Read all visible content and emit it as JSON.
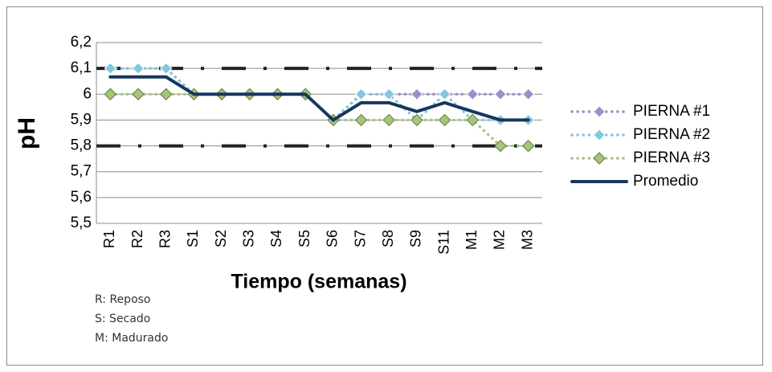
{
  "chart_data": {
    "type": "line",
    "y_label": "pH",
    "x_label": "Tiempo (semanas)",
    "categories": [
      "R1",
      "R2",
      "R3",
      "S1",
      "S2",
      "S3",
      "S4",
      "S5",
      "S6",
      "S7",
      "S8",
      "S9",
      "S11",
      "M1",
      "M2",
      "M3"
    ],
    "series": [
      {
        "name": "PIERNA #1",
        "color": "#a08cc8",
        "marker": "diamond",
        "values": [
          6.1,
          6.1,
          6.1,
          6.0,
          6.0,
          6.0,
          6.0,
          6.0,
          5.9,
          6.0,
          6.0,
          6.0,
          6.0,
          6.0,
          6.0,
          6.0
        ]
      },
      {
        "name": "PIERNA #2",
        "color": "#80c8de",
        "marker": "diamond",
        "values": [
          6.1,
          6.1,
          6.1,
          6.0,
          6.0,
          6.0,
          6.0,
          6.0,
          5.9,
          6.0,
          6.0,
          5.9,
          6.0,
          5.9,
          5.9,
          5.9
        ]
      },
      {
        "name": "PIERNA #3",
        "color": "#a6c57a",
        "marker": "diamond",
        "values": [
          6.0,
          6.0,
          6.0,
          6.0,
          6.0,
          6.0,
          6.0,
          6.0,
          5.9,
          5.9,
          5.9,
          5.9,
          5.9,
          5.9,
          5.8,
          5.8
        ]
      },
      {
        "name": "Promedio",
        "color": "#17375e",
        "marker": "none",
        "values": [
          6.067,
          6.067,
          6.067,
          6.0,
          6.0,
          6.0,
          6.0,
          6.0,
          5.9,
          5.967,
          5.967,
          5.933,
          5.967,
          5.933,
          5.9,
          5.9
        ]
      }
    ],
    "reference_lines": [
      6.1,
      5.8
    ],
    "ylim": [
      5.5,
      6.2
    ],
    "yticks": [
      {
        "value": 5.5,
        "label": "5,5"
      },
      {
        "value": 5.6,
        "label": "5,6"
      },
      {
        "value": 5.7,
        "label": "5,7"
      },
      {
        "value": 5.8,
        "label": "5,8"
      },
      {
        "value": 5.9,
        "label": "5,9"
      },
      {
        "value": 6,
        "label": "6"
      },
      {
        "value": 6.1,
        "label": "6,1"
      },
      {
        "value": 6.2,
        "label": "6,2"
      }
    ],
    "grid": true,
    "legend": "right",
    "notes": [
      "R: Reposo",
      "S: Secado",
      "M: Madurado"
    ]
  }
}
